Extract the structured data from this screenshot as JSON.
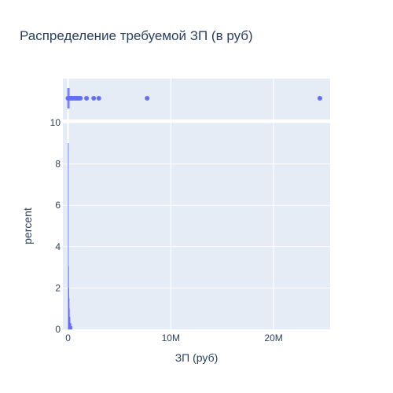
{
  "chart_data": {
    "type": "bar",
    "title": "Распределение требуемой ЗП (в руб)",
    "xlabel": "ЗП (руб)",
    "ylabel": "percent",
    "xlim": [
      -500000,
      25500000
    ],
    "ylim": [
      0,
      10
    ],
    "x_ticks": [
      {
        "value": 0,
        "label": "0"
      },
      {
        "value": 10000000,
        "label": "10M"
      },
      {
        "value": 20000000,
        "label": "20M"
      }
    ],
    "y_ticks": [
      {
        "value": 0,
        "label": "0"
      },
      {
        "value": 2,
        "label": "2"
      },
      {
        "value": 4,
        "label": "4"
      },
      {
        "value": 6,
        "label": "6"
      },
      {
        "value": 8,
        "label": "8"
      },
      {
        "value": 10,
        "label": "10"
      }
    ],
    "histogram": {
      "bins": [
        {
          "x0": 0,
          "x1": 25000,
          "percent": 9.0
        },
        {
          "x0": 25000,
          "x1": 50000,
          "percent": 3.05
        },
        {
          "x0": 50000,
          "x1": 75000,
          "percent": 2.0
        },
        {
          "x0": 75000,
          "x1": 100000,
          "percent": 1.5
        },
        {
          "x0": 100000,
          "x1": 150000,
          "percent": 1.0
        },
        {
          "x0": 150000,
          "x1": 200000,
          "percent": 0.6
        },
        {
          "x0": 200000,
          "x1": 300000,
          "percent": 0.3
        },
        {
          "x0": 300000,
          "x1": 400000,
          "percent": 0.15
        }
      ]
    },
    "rug_points": [
      0,
      20000,
      40000,
      60000,
      80000,
      100000,
      150000,
      200000,
      250000,
      300000,
      400000,
      500000,
      600000,
      700000,
      800000,
      900000,
      1000000,
      1100000,
      1200000,
      1800000,
      2500000,
      3000000,
      7700000,
      24500000
    ],
    "colors": {
      "bar": "#636efa",
      "marker": "#636efa",
      "plot_bg": "#e5ecf6",
      "grid": "#ffffff",
      "text": "#2a3f5f"
    },
    "grid": true
  }
}
